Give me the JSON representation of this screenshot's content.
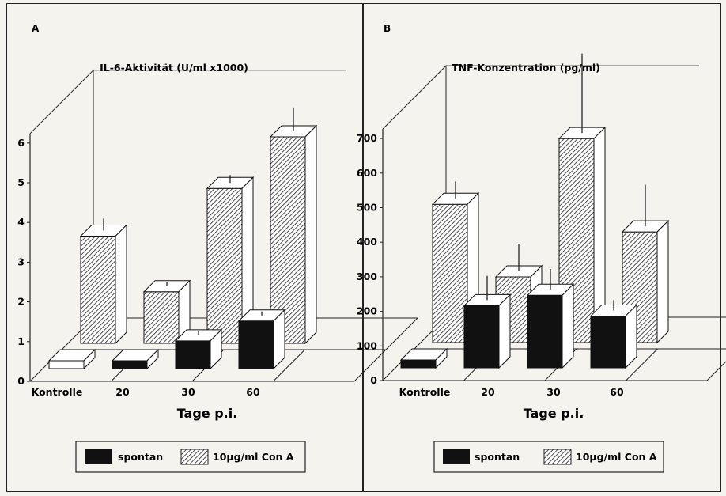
{
  "legend": {
    "items": [
      {
        "label": "spontan",
        "style": "solid"
      },
      {
        "label": "10µg/ml Con A",
        "style": "hatched"
      }
    ]
  },
  "colors": {
    "solid": "#111111",
    "hatch": "#222222",
    "face": "#ffffff",
    "background": "#f4f3ee"
  },
  "chart_data": [
    {
      "type": "bar",
      "panel": "A",
      "title": "IL-6-Aktivität (U/ml x1000)",
      "xlabel": "Tage p.i.",
      "ylabel": "",
      "categories": [
        "Kontrolle",
        "20",
        "30",
        "60"
      ],
      "ylim": [
        0,
        6
      ],
      "yticks": [
        0,
        1,
        2,
        3,
        4,
        5,
        6
      ],
      "series": [
        {
          "name": "spontan",
          "values": [
            0.1,
            0.2,
            0.7,
            1.2
          ],
          "errors": [
            0,
            0,
            0.1,
            0.1
          ]
        },
        {
          "name": "10µg/ml Con A",
          "values": [
            2.7,
            1.3,
            3.9,
            5.2
          ],
          "errors": [
            0.3,
            0.1,
            0.2,
            0.6
          ]
        }
      ]
    },
    {
      "type": "bar",
      "panel": "B",
      "title": "TNF-Konzentration (pg/ml)",
      "xlabel": "Tage p.i.",
      "ylabel": "",
      "categories": [
        "Kontrolle",
        "20",
        "30",
        "60"
      ],
      "ylim": [
        0,
        700
      ],
      "yticks": [
        0,
        100,
        200,
        300,
        400,
        500,
        600,
        700
      ],
      "series": [
        {
          "name": "spontan",
          "values": [
            20,
            180,
            210,
            150
          ],
          "errors": [
            0,
            70,
            60,
            30
          ]
        },
        {
          "name": "10µg/ml Con A",
          "values": [
            400,
            190,
            590,
            320
          ],
          "errors": [
            50,
            80,
            230,
            120
          ]
        }
      ]
    }
  ]
}
